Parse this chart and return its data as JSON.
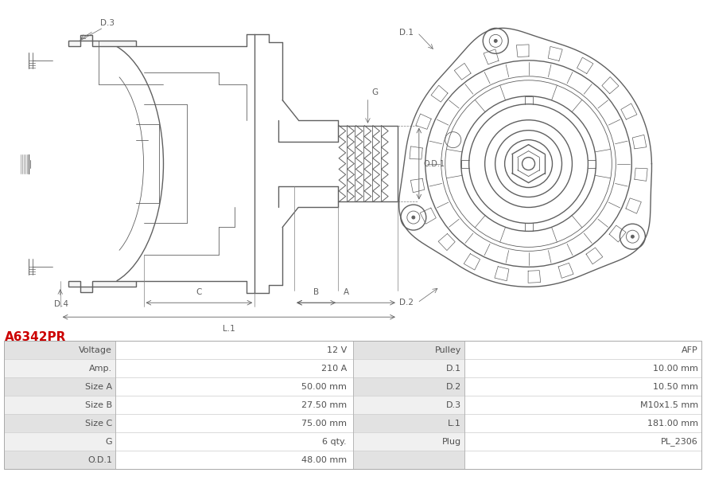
{
  "title": "A6342PR",
  "title_color": "#cc0000",
  "bg_color": "#ffffff",
  "table_row_bg_odd": "#e2e2e2",
  "table_row_bg_even": "#f0f0f0",
  "table_val_bg": "#fafafa",
  "rows_left": [
    [
      "Voltage",
      "12 V"
    ],
    [
      "Amp.",
      "210 A"
    ],
    [
      "Size A",
      "50.00 mm"
    ],
    [
      "Size B",
      "27.50 mm"
    ],
    [
      "Size C",
      "75.00 mm"
    ],
    [
      "G",
      "6 qty."
    ],
    [
      "O.D.1",
      "48.00 mm"
    ]
  ],
  "rows_right": [
    [
      "Pulley",
      "AFP"
    ],
    [
      "D.1",
      "10.00 mm"
    ],
    [
      "D.2",
      "10.50 mm"
    ],
    [
      "D.3",
      "M10x1.5 mm"
    ],
    [
      "L.1",
      "181.00 mm"
    ],
    [
      "Plug",
      "PL_2306"
    ],
    [
      "",
      ""
    ]
  ],
  "lc": "#606060",
  "lc_thin": "#808080",
  "lw_main": 1.0,
  "lw_thin": 0.6,
  "lw_dim": 0.5
}
